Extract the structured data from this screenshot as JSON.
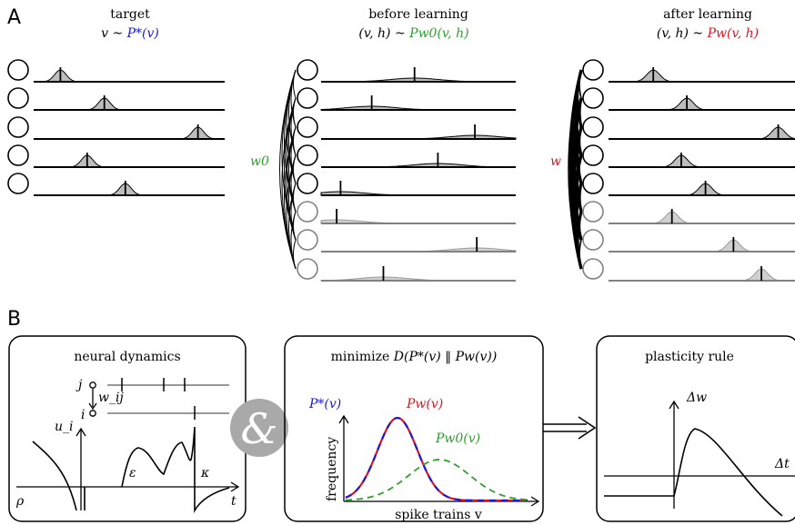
{
  "panel_a": {
    "letter": "A",
    "target": {
      "title": "target",
      "formula_prefix": "v ~ ",
      "formula_dist": "P*(v)",
      "color": "#1a1adf"
    },
    "before": {
      "title": "before learning",
      "formula_prefix": "(v, h) ~ ",
      "formula_dist": "Pw0(v, h)",
      "color": "#2ca02c",
      "weight_label": "w0"
    },
    "after": {
      "title": "after learning",
      "formula_prefix": "(v, h) ~ ",
      "formula_dist": "Pw(v, h)",
      "color": "#e0141e",
      "weight_label": "w"
    },
    "visible_count": 5,
    "hidden_count": 3,
    "target_peaks": [
      0.14,
      0.37,
      0.86,
      0.28,
      0.48
    ],
    "before_peaks": [
      0.48,
      0.26,
      0.79,
      0.6,
      0.1,
      0.08,
      0.8,
      0.32
    ],
    "after_peaks": [
      0.24,
      0.42,
      0.91,
      0.39,
      0.52,
      0.34,
      0.67,
      0.82
    ]
  },
  "panel_b": {
    "letter": "B",
    "neural": {
      "title": "neural dynamics",
      "j": "j",
      "i": "i",
      "wij": "w_ij",
      "ui": "u_i",
      "epsilon": "ε",
      "kappa": "κ",
      "rho": "ρ",
      "t": "t"
    },
    "ampersand": "&",
    "minimize": {
      "title_prefix": "minimize ",
      "title_formula": "D(P*(v) ‖ Pw(v))",
      "legend_target": "P*(v)",
      "legend_model": "Pw(v)",
      "legend_initial": "Pw0(v)",
      "ylabel": "frequency",
      "xlabel": "spike trains v",
      "colors": {
        "target": "#1a1adf",
        "model": "#e0141e",
        "initial": "#2ca02c"
      }
    },
    "plasticity": {
      "title": "plasticity rule",
      "dw": "Δw",
      "dt": "Δt"
    }
  }
}
